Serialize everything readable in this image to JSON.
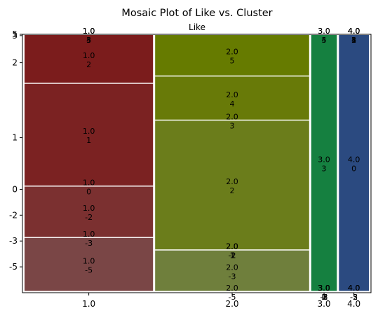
{
  "chart_data": {
    "type": "mosaic",
    "title": "Mosaic Plot of Like vs. Cluster",
    "top_label": "Like",
    "grid": false,
    "x_categories": [
      "1.0",
      "2.0",
      "3.0",
      "4.0"
    ],
    "x_widths": [
      0.429,
      0.514,
      0.0854,
      0.1
    ],
    "y_ticks": [
      "5",
      "3",
      "2",
      "1",
      "0",
      "-2",
      "-3",
      "-5"
    ],
    "y_tick_positions": [
      0.0,
      0.005,
      0.11,
      0.4,
      0.6,
      0.7,
      0.8,
      0.9
    ],
    "columns": [
      {
        "like": "1.0",
        "color": "#7b1c1c",
        "cells": [
          {
            "cluster": "-5",
            "fraction": 0.21,
            "color": "#7a4646"
          },
          {
            "cluster": "-3",
            "fraction": 0.0,
            "color": "#7b3737"
          },
          {
            "cluster": "-2",
            "fraction": 0.2,
            "color": "#7b3030"
          },
          {
            "cluster": "0",
            "fraction": 0.0,
            "color": "#7b2a2a"
          },
          {
            "cluster": "1",
            "fraction": 0.4,
            "color": "#7b2222"
          },
          {
            "cluster": "2",
            "fraction": 0.19,
            "color": "#7b1c1c"
          },
          {
            "cluster": "3",
            "fraction": 0.0,
            "color": "#7b1c1c"
          },
          {
            "cluster": "4",
            "fraction": 0.0,
            "color": "#7b1c1c"
          },
          {
            "cluster": "5",
            "fraction": 0.0,
            "color": "#7b1c1c"
          }
        ],
        "cell_labels": [
          {
            "line1": "1.0",
            "line2": "-5"
          },
          {
            "line1": "1.0",
            "line2": "-3"
          },
          {
            "line1": "1.0",
            "line2": "-2"
          },
          {
            "line1": "1.0",
            "line2": "0"
          },
          {
            "line1": "1.0",
            "line2": "1"
          },
          {
            "line1": "1.0",
            "line2": "2"
          },
          {
            "line1": "1.0",
            "line2": "3"
          },
          {
            "line1": "1.0",
            "line2": "4"
          },
          {
            "line1": "1.0",
            "line2": "5"
          }
        ]
      },
      {
        "like": "2.0",
        "color": "#6a7a05",
        "cells": [
          {
            "cluster": "-5",
            "fraction": 0.0,
            "color": "#6f7f3c"
          },
          {
            "cluster": "-3",
            "fraction": 0.16,
            "color": "#6f7f3c"
          },
          {
            "cluster": "-2",
            "fraction": 0.0,
            "color": "#6d7e30"
          },
          {
            "cluster": "-1",
            "fraction": 0.0,
            "color": "#6d7e30"
          },
          {
            "cluster": "1",
            "fraction": 0.0,
            "color": "#6b7d22"
          },
          {
            "cluster": "2",
            "fraction": 0.5,
            "color": "#6b7d1b"
          },
          {
            "cluster": "3",
            "fraction": 0.0,
            "color": "#6a7c12"
          },
          {
            "cluster": "4",
            "fraction": 0.17,
            "color": "#687a08"
          },
          {
            "cluster": "5",
            "fraction": 0.16,
            "color": "#667b00"
          }
        ],
        "cell_labels": [
          {
            "line1": "2.0",
            "line2": "-5"
          },
          {
            "line1": "2.0",
            "line2": "-3"
          },
          {
            "line1": "2.0",
            "line2": "-2"
          },
          {
            "line1": "2.0",
            "line2": "-1"
          },
          {
            "line1": "2.0",
            "line2": "1"
          },
          {
            "line1": "2.0",
            "line2": "2"
          },
          {
            "line1": "2.0",
            "line2": "3"
          },
          {
            "line1": "2.0",
            "line2": "4"
          },
          {
            "line1": "2.0",
            "line2": "5"
          }
        ]
      },
      {
        "like": "3.0",
        "color": "#158040",
        "cells": [
          {
            "cluster": "-5",
            "fraction": 0.0,
            "color": "#158040"
          },
          {
            "cluster": "-3",
            "fraction": 0.0,
            "color": "#158040"
          },
          {
            "cluster": "-2",
            "fraction": 0.0,
            "color": "#158040"
          },
          {
            "cluster": "0",
            "fraction": 0.0,
            "color": "#158040"
          },
          {
            "cluster": "1",
            "fraction": 0.0,
            "color": "#158040"
          },
          {
            "cluster": "2",
            "fraction": 0.0,
            "color": "#158040"
          },
          {
            "cluster": "3",
            "fraction": 0.97,
            "color": "#158040"
          },
          {
            "cluster": "4",
            "fraction": 0.0,
            "color": "#158040"
          },
          {
            "cluster": "5",
            "fraction": 0.0,
            "color": "#158040"
          }
        ],
        "cell_labels": [
          {
            "line1": "3.0",
            "line2": "-5"
          },
          {
            "line1": "3.0",
            "line2": "-3"
          },
          {
            "line1": "3.0",
            "line2": "-2"
          },
          {
            "line1": "3.0",
            "line2": "0"
          },
          {
            "line1": "3.0",
            "line2": "1"
          },
          {
            "line1": "3.0",
            "line2": "2"
          },
          {
            "line1": "3.0",
            "line2": "3"
          },
          {
            "line1": "3.0",
            "line2": "4"
          },
          {
            "line1": "3.0",
            "line2": "5"
          }
        ]
      },
      {
        "like": "4.0",
        "color": "#2b4a80",
        "cells": [
          {
            "cluster": "-5",
            "fraction": 0.0,
            "color": "#2b4a80"
          },
          {
            "cluster": "-3",
            "fraction": 0.0,
            "color": "#2b4a80"
          },
          {
            "cluster": "-2",
            "fraction": 0.0,
            "color": "#2b4a80"
          },
          {
            "cluster": "0",
            "fraction": 0.97,
            "color": "#2b4a80"
          },
          {
            "cluster": "1",
            "fraction": 0.0,
            "color": "#2b4a80"
          },
          {
            "cluster": "2",
            "fraction": 0.0,
            "color": "#2b4a80"
          },
          {
            "cluster": "3",
            "fraction": 0.0,
            "color": "#2b4a80"
          },
          {
            "cluster": "4",
            "fraction": 0.0,
            "color": "#2b4a80"
          },
          {
            "cluster": "5",
            "fraction": 0.0,
            "color": "#2b4a80"
          }
        ],
        "cell_labels": [
          {
            "line1": "4.0",
            "line2": "-5"
          },
          {
            "line1": "4.0",
            "line2": "-3"
          },
          {
            "line1": "4.0",
            "line2": "-2"
          },
          {
            "line1": "4.0",
            "line2": "0"
          },
          {
            "line1": "4.0",
            "line2": "1"
          },
          {
            "line1": "4.0",
            "line2": "2"
          },
          {
            "line1": "4.0",
            "line2": "3"
          },
          {
            "line1": "4.0",
            "line2": "4"
          },
          {
            "line1": "4.0",
            "line2": "5"
          }
        ]
      }
    ]
  }
}
